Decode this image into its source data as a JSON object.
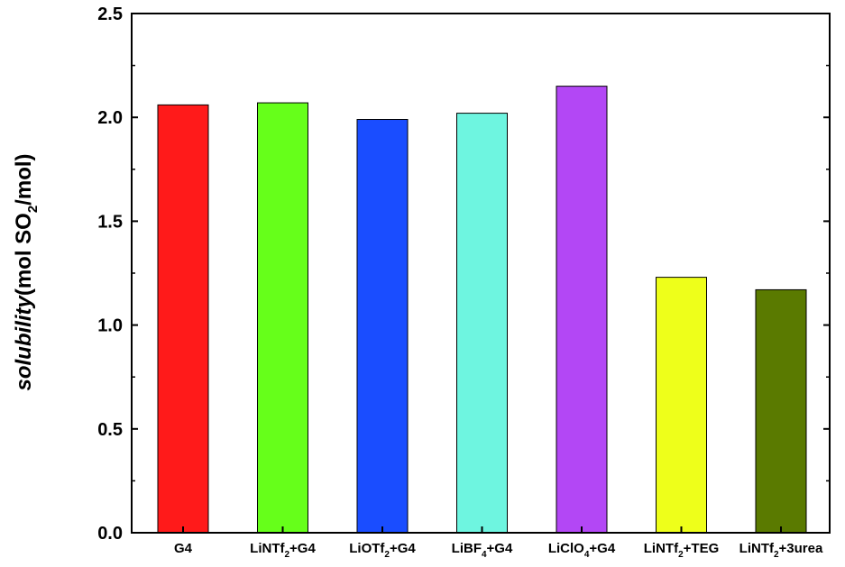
{
  "chart_data": {
    "type": "bar",
    "ylabel_italic": "solubility",
    "ylabel_rest_before_sub": "(mol SO",
    "ylabel_sub": "2",
    "ylabel_rest_after_sub": "/mol)",
    "ylim": [
      0.0,
      2.5
    ],
    "yticks": [
      0.0,
      0.5,
      1.0,
      1.5,
      2.0,
      2.5
    ],
    "ytick_labels": [
      "0.0",
      "0.5",
      "1.0",
      "1.5",
      "2.0",
      "2.5"
    ],
    "grid": false,
    "categories": [
      {
        "pre": "G4",
        "sub": "",
        "post": ""
      },
      {
        "pre": "LiNTf",
        "sub": "2",
        "post": "+G4"
      },
      {
        "pre": "LiOTf",
        "sub": "2",
        "post": "+G4"
      },
      {
        "pre": "LiBF",
        "sub": "4",
        "post": "+G4"
      },
      {
        "pre": "LiClO",
        "sub": "4",
        "post": "+G4"
      },
      {
        "pre": "LiNTf",
        "sub": "2",
        "post": "+TEG"
      },
      {
        "pre": "LiNTf",
        "sub": "2",
        "post": "+3urea"
      }
    ],
    "values": [
      2.06,
      2.07,
      1.99,
      2.02,
      2.15,
      1.23,
      1.17
    ],
    "colors": [
      "#ff1a1a",
      "#66ff1a",
      "#1a4dff",
      "#6ef5e0",
      "#b347f5",
      "#eeff1a",
      "#5a7a00"
    ]
  }
}
